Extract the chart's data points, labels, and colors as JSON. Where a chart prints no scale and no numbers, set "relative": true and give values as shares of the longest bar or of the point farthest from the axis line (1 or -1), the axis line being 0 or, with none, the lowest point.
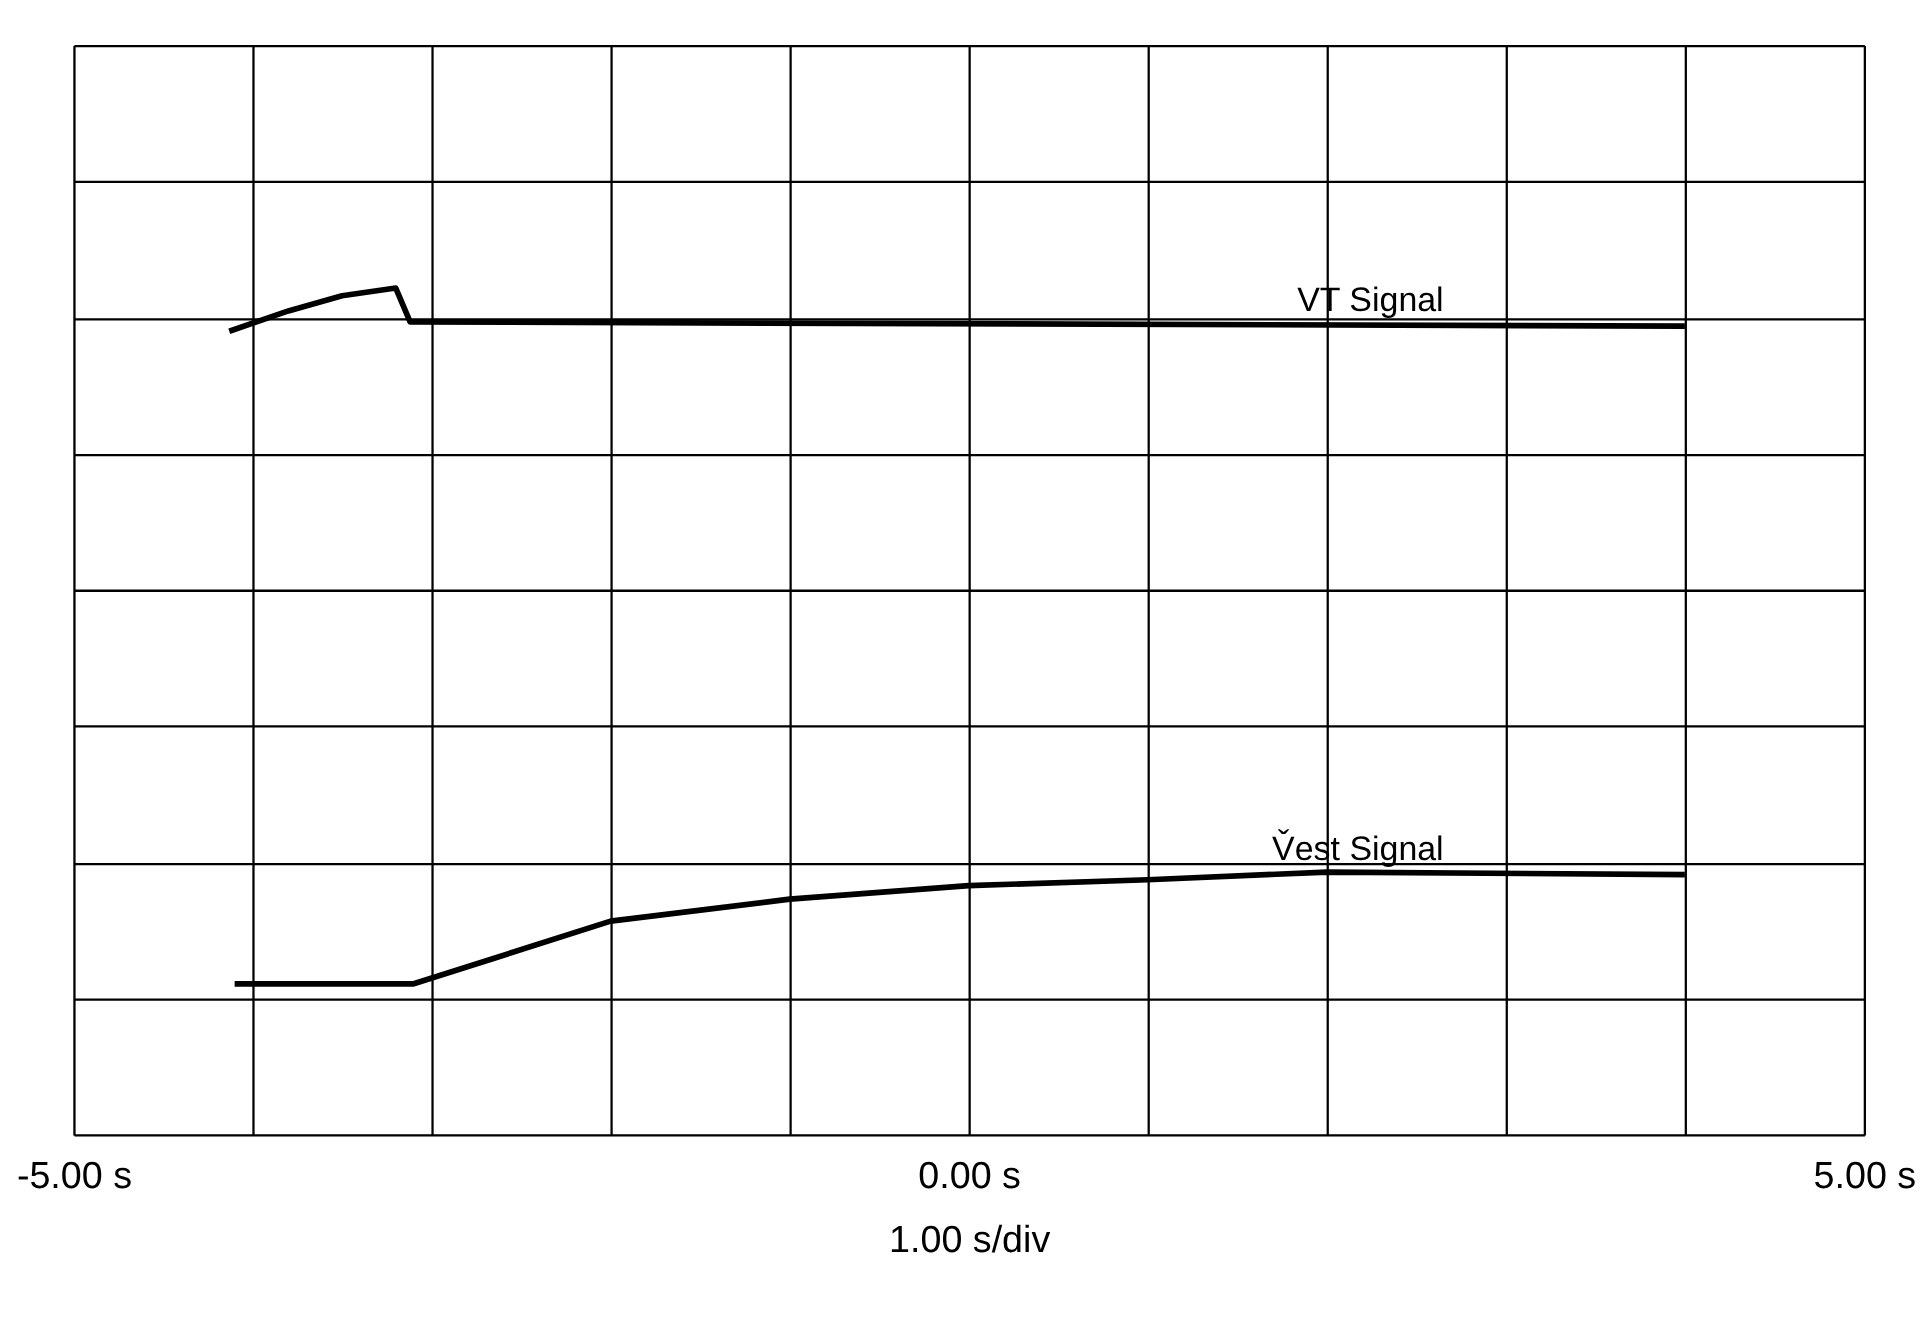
{
  "chart_data": {
    "type": "line",
    "relative": true,
    "xlabel": "1.00 s/div",
    "xlim": [
      -5,
      5
    ],
    "xticks": [
      {
        "value": -5,
        "label": "-5.00 s"
      },
      {
        "value": -4,
        "label": null
      },
      {
        "value": -3,
        "label": null
      },
      {
        "value": -2,
        "label": null
      },
      {
        "value": -1,
        "label": null
      },
      {
        "value": 0,
        "label": "0.00 s"
      },
      {
        "value": 1,
        "label": null
      },
      {
        "value": 2,
        "label": null
      },
      {
        "value": 3,
        "label": null
      },
      {
        "value": 4,
        "label": null
      },
      {
        "value": 5,
        "label": "5.00 s"
      }
    ],
    "grid": true,
    "legend": false,
    "marker": "none",
    "line_style": "solid",
    "series": [
      {
        "name": "VT Signal",
        "color": "#000000",
        "x": [
          -4.13,
          -3.8,
          -3.5,
          -3.2,
          -3.12,
          4.0
        ],
        "values": [
          0.949,
          0.973,
          0.991,
          1.0,
          0.96,
          0.955
        ]
      },
      {
        "name": "V̌est Signal",
        "color": "#000000",
        "x": [
          -4.1,
          -3.1,
          -2.0,
          -1.0,
          0.0,
          1.0,
          2.0,
          4.0
        ],
        "values": [
          0.178,
          0.178,
          0.252,
          0.278,
          0.294,
          0.301,
          0.31,
          0.307
        ]
      }
    ]
  }
}
